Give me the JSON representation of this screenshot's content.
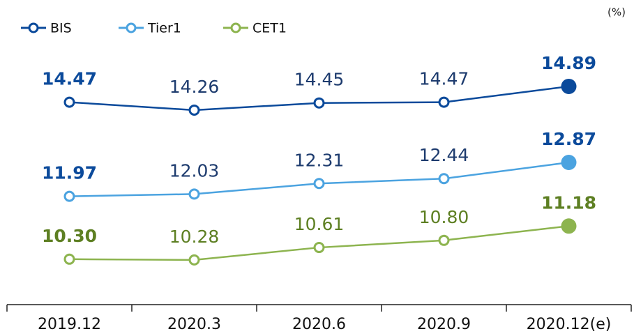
{
  "chart_data": {
    "type": "line",
    "unit": "(%)",
    "categories": [
      "2019.12",
      "2020.3",
      "2020.6",
      "2020.9",
      "2020.12(e)"
    ],
    "series": [
      {
        "name": "BIS",
        "color": "#0b4a9b",
        "values": [
          14.47,
          14.26,
          14.45,
          14.47,
          14.89
        ],
        "value_labels": [
          "14.47",
          "14.26",
          "14.45",
          "14.47",
          "14.89"
        ]
      },
      {
        "name": "Tier1",
        "color": "#4ba3e0",
        "values": [
          11.97,
          12.03,
          12.31,
          12.44,
          12.87
        ],
        "value_labels": [
          "11.97",
          "12.03",
          "12.31",
          "12.44",
          "12.87"
        ]
      },
      {
        "name": "CET1",
        "color": "#8db44f",
        "values": [
          10.3,
          10.28,
          10.61,
          10.8,
          11.18
        ],
        "value_labels": [
          "10.30",
          "10.28",
          "10.61",
          "10.80",
          "11.18"
        ]
      }
    ],
    "ylim": [
      9.5,
      15.5
    ]
  }
}
